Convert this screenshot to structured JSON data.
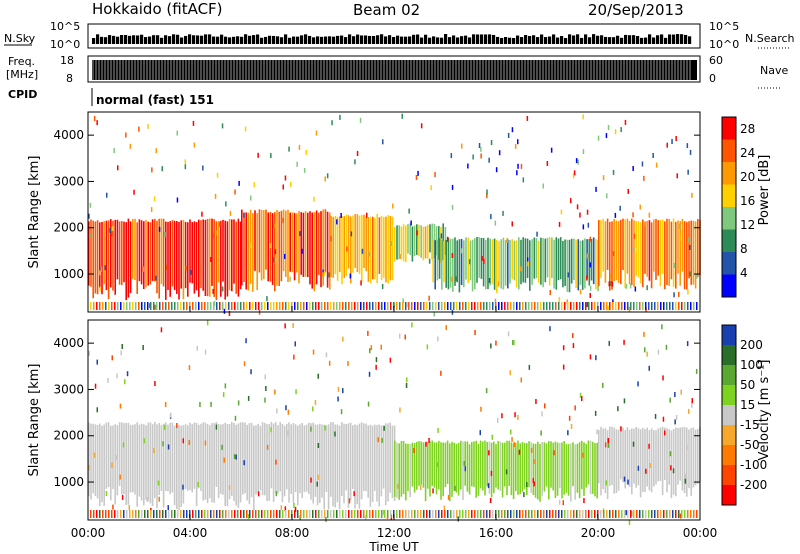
{
  "header": {
    "title": "Hokkaido (fitACF)",
    "beam": "Beam 02",
    "date": "20/Sep/2013"
  },
  "panels": {
    "nsky_label": "N.Sky",
    "nsky_ticks": [
      "10^5",
      "10^0"
    ],
    "nsearch_label": "N.Search",
    "nsearch_ticks": [
      "10^5",
      "10^0"
    ],
    "freq_label_1": "Freq.",
    "freq_label_2": "[MHz]",
    "freq_ticks": [
      "18",
      "8"
    ],
    "nave_label": "Nave",
    "nave_ticks": [
      "60",
      "0"
    ],
    "cpid_label": "CPID",
    "cpid_text": "normal (fast) 151"
  },
  "colors": {
    "power_scale": [
      "#0000ff",
      "#2255aa",
      "#2e8b57",
      "#7fc97f",
      "#ffd000",
      "#ff9900",
      "#ff5500",
      "#ff0000"
    ],
    "velocity_scale": [
      "#1a3fb0",
      "#2a6e2a",
      "#5aa832",
      "#7ed321",
      "#c8c8c8",
      "#f7a82a",
      "#ff7a00",
      "#ff4400",
      "#ff0000"
    ],
    "ground_scatter": "#b9b9b9"
  },
  "chart_data": [
    {
      "type": "heatmap",
      "name": "power",
      "xlabel": "Time UT",
      "ylabel": "Slant Range [km]",
      "x_ticks": [
        "00:00",
        "04:00",
        "08:00",
        "12:00",
        "16:00",
        "20:00",
        "00:00"
      ],
      "x_range_hours": [
        0,
        24
      ],
      "y_ticks": [
        1000,
        2000,
        3000,
        4000
      ],
      "ylim": [
        180,
        4500
      ],
      "colorbar_label": "Power [dB]",
      "colorbar_ticks": [
        4,
        8,
        12,
        16,
        20,
        24,
        28
      ],
      "colorbar_range": [
        0,
        30
      ],
      "regions": [
        {
          "t": [
            0,
            6
          ],
          "r": [
            700,
            2200
          ],
          "level": 26
        },
        {
          "t": [
            6,
            9.5
          ],
          "r": [
            900,
            2400
          ],
          "level": 24
        },
        {
          "t": [
            9.5,
            12
          ],
          "r": [
            1000,
            2300
          ],
          "level": 20
        },
        {
          "t": [
            12,
            14
          ],
          "r": [
            1400,
            2100
          ],
          "level": 14
        },
        {
          "t": [
            13.5,
            20
          ],
          "r": [
            800,
            1800
          ],
          "level": 12
        },
        {
          "t": [
            20,
            24
          ],
          "r": [
            900,
            2200
          ],
          "level": 22
        }
      ]
    },
    {
      "type": "heatmap",
      "name": "velocity",
      "xlabel": "Time UT",
      "ylabel": "Slant Range [km]",
      "x_ticks": [
        "00:00",
        "04:00",
        "08:00",
        "12:00",
        "16:00",
        "20:00",
        "00:00"
      ],
      "x_range_hours": [
        0,
        24
      ],
      "y_ticks": [
        1000,
        2000,
        3000,
        4000
      ],
      "ylim": [
        180,
        4500
      ],
      "colorbar_label": "Velocity [m s⁻¹]",
      "colorbar_ticks": [
        200,
        100,
        50,
        15,
        -15,
        -50,
        -100,
        -200
      ],
      "colorbar_range": [
        -250,
        250
      ],
      "regions": [
        {
          "t": [
            0,
            12
          ],
          "r": [
            700,
            2300
          ],
          "level": 0
        },
        {
          "t": [
            12,
            20
          ],
          "r": [
            800,
            1900
          ],
          "level": 40
        },
        {
          "t": [
            20,
            24
          ],
          "r": [
            900,
            2200
          ],
          "level": 0
        }
      ]
    }
  ]
}
